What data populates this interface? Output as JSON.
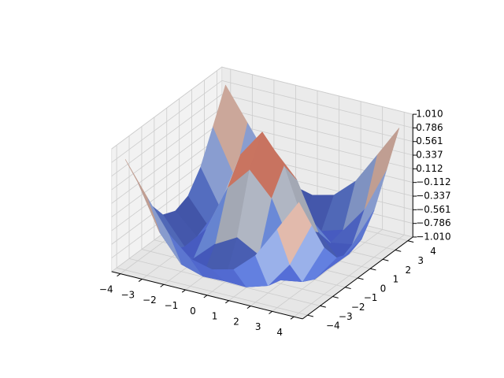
{
  "chart_data": {
    "type": "surface",
    "x": [
      -4,
      -3,
      -2,
      -1,
      0,
      1,
      2,
      3,
      4
    ],
    "y": [
      -4,
      -3,
      -2,
      -1,
      0,
      1,
      2,
      3,
      4
    ],
    "z": [
      [
        0.81,
        0.28,
        -0.24,
        -0.56,
        -0.65,
        -0.56,
        -0.24,
        0.28,
        0.81
      ],
      [
        0.28,
        -0.45,
        -0.89,
        -1.0,
        -0.99,
        -1.0,
        -0.89,
        -0.45,
        0.28
      ],
      [
        -0.24,
        -0.89,
        -0.95,
        -0.62,
        -0.42,
        -0.62,
        -0.95,
        -0.89,
        -0.24
      ],
      [
        -0.56,
        -1.0,
        -0.62,
        0.16,
        0.54,
        0.16,
        -0.62,
        -1.0,
        -0.56
      ],
      [
        -0.65,
        -0.99,
        -0.42,
        0.54,
        1.0,
        0.54,
        -0.42,
        -0.99,
        -0.65
      ],
      [
        -0.56,
        -1.0,
        -0.62,
        0.16,
        0.54,
        0.16,
        -0.62,
        -1.0,
        -0.56
      ],
      [
        -0.24,
        -0.89,
        -0.95,
        -0.62,
        -0.42,
        -0.62,
        -0.95,
        -0.89,
        -0.24
      ],
      [
        0.28,
        -0.45,
        -0.89,
        -1.0,
        -0.99,
        -1.0,
        -0.89,
        -0.45,
        0.28
      ],
      [
        0.81,
        0.28,
        -0.24,
        -0.56,
        -0.65,
        -0.56,
        -0.24,
        0.28,
        0.81
      ]
    ],
    "xlim": [
      -4.4,
      4.4
    ],
    "ylim": [
      -4.4,
      4.4
    ],
    "zlim": [
      -1.01,
      1.01
    ],
    "xticks": [
      {
        "value": -4,
        "label": "−4"
      },
      {
        "value": -3,
        "label": "−3"
      },
      {
        "value": -2,
        "label": "−2"
      },
      {
        "value": -1,
        "label": "−1"
      },
      0,
      1,
      2,
      3,
      4
    ],
    "yticks": [
      {
        "value": -4,
        "label": "−4"
      },
      {
        "value": -3,
        "label": "−3"
      },
      {
        "value": -2,
        "label": "−2"
      },
      {
        "value": -1,
        "label": "−1"
      },
      0,
      1,
      2,
      3,
      4
    ],
    "zticks": [
      {
        "value": -1.01,
        "label": "−1.010"
      },
      {
        "value": -0.786,
        "label": "−0.786"
      },
      {
        "value": -0.561,
        "label": "−0.561"
      },
      {
        "value": -0.337,
        "label": "−0.337"
      },
      {
        "value": -0.112,
        "label": "−0.112"
      },
      {
        "value": 0.112,
        "label": "0.112"
      },
      {
        "value": 0.337,
        "label": "0.337"
      },
      {
        "value": 0.561,
        "label": "0.561"
      },
      {
        "value": 0.786,
        "label": "0.786"
      },
      {
        "value": 1.01,
        "label": "1.010"
      }
    ],
    "grid": true,
    "colormap": [
      "#3b4cc0",
      "#7b9ff9",
      "#dddddd",
      "#f49a7b",
      "#b40426"
    ]
  }
}
